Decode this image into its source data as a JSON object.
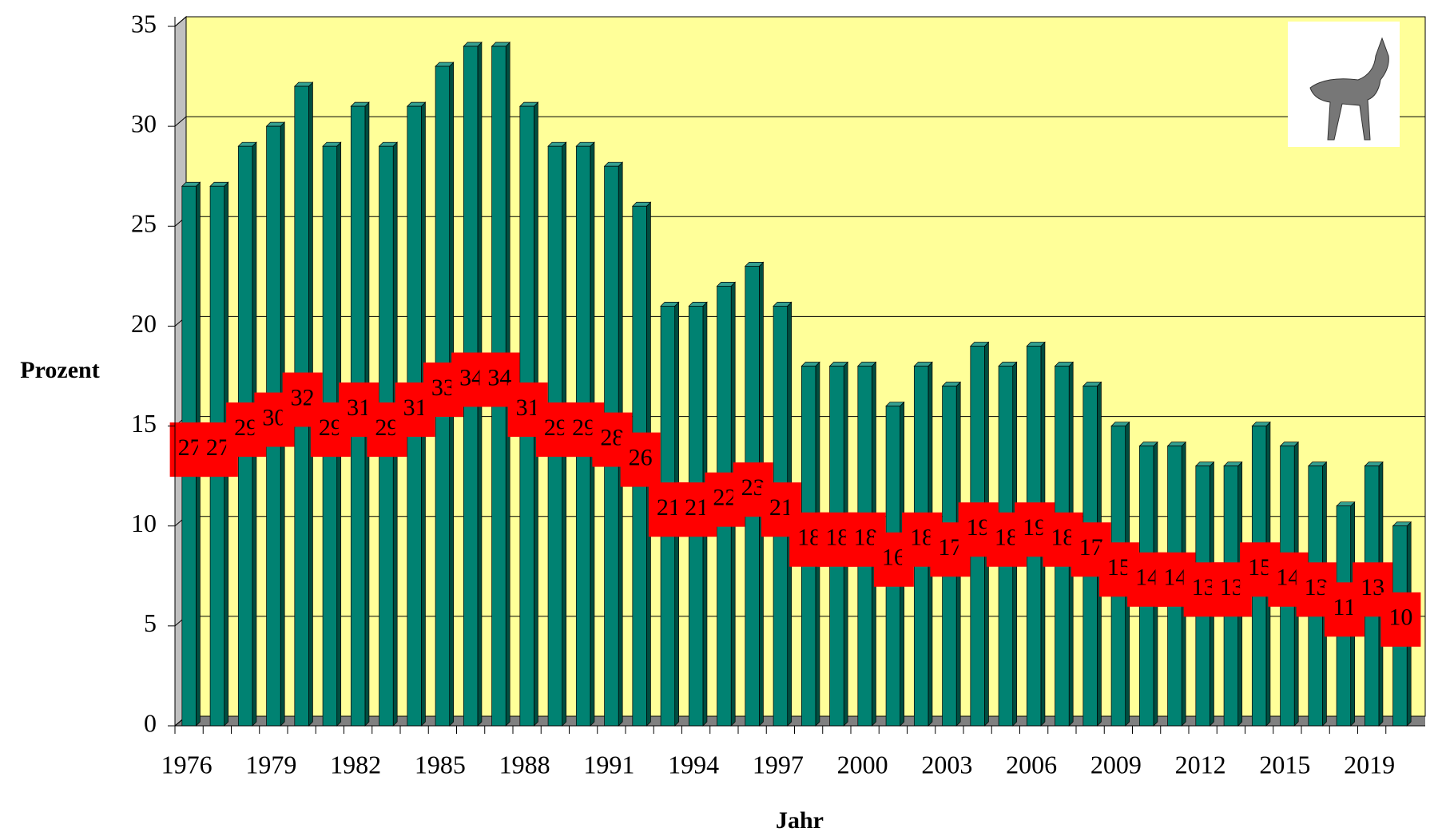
{
  "chart_data": {
    "type": "bar",
    "x_label": "Jahr",
    "y_label": "Prozent",
    "categories": [
      "1976",
      null,
      null,
      "1979",
      null,
      null,
      "1982",
      null,
      null,
      "1985",
      null,
      null,
      "1988",
      null,
      null,
      "1991",
      null,
      null,
      "1994",
      null,
      null,
      "1997",
      null,
      null,
      "2000",
      null,
      null,
      "2003",
      null,
      null,
      "2006",
      null,
      null,
      "2009",
      null,
      null,
      "2012",
      null,
      null,
      "2015",
      null,
      null,
      "2019",
      null
    ],
    "values": [
      27,
      27,
      29,
      30,
      32,
      29,
      31,
      29,
      31,
      33,
      34,
      34,
      31,
      29,
      29,
      28,
      26,
      21,
      21,
      22,
      23,
      21,
      18,
      18,
      18,
      16,
      18,
      17,
      19,
      18,
      19,
      18,
      17,
      15,
      14,
      14,
      13,
      13,
      15,
      14,
      13,
      11,
      13,
      10
    ],
    "color": "#008272",
    "label_color": "#ff0000",
    "ylim": [
      0,
      35
    ],
    "yticks": [
      0,
      5,
      10,
      15,
      20,
      25,
      30,
      35
    ],
    "grid": true
  }
}
